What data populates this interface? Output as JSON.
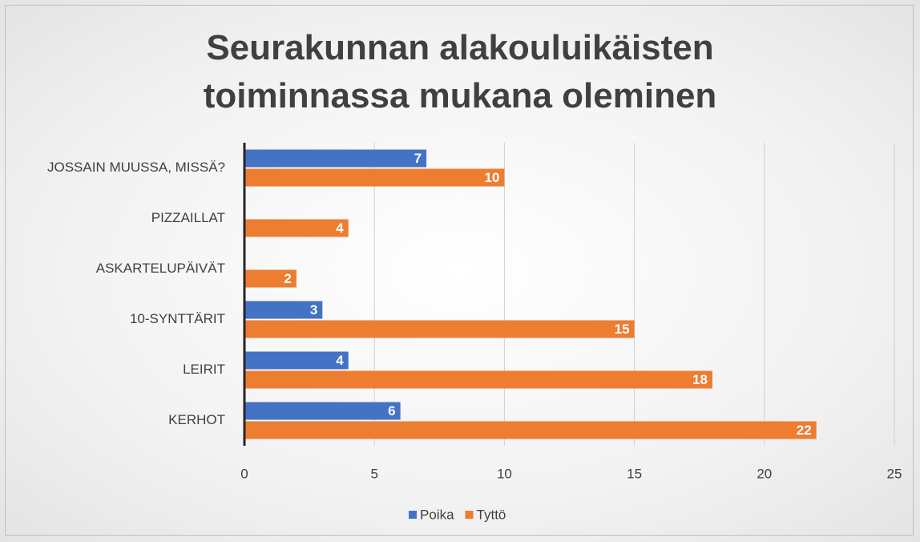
{
  "chart_data": {
    "type": "bar",
    "orientation": "horizontal",
    "title": "Seurakunnan alakouluikäisten toiminnassa mukana oleminen",
    "categories": [
      "JOSSAIN MUUSSA, MISSÄ?",
      "PIZZAILLAT",
      "ASKARTELUPÄIVÄT",
      "10-SYNTTÄRIT",
      "LEIRIT",
      "KERHOT"
    ],
    "series": [
      {
        "name": "Poika",
        "color": "#4472c4",
        "values": [
          7,
          null,
          null,
          3,
          4,
          6
        ]
      },
      {
        "name": "Tyttö",
        "color": "#ed7d31",
        "values": [
          10,
          4,
          2,
          15,
          18,
          22
        ]
      }
    ],
    "xlim": [
      0,
      25
    ],
    "xticks": [
      0,
      5,
      10,
      15,
      20,
      25
    ],
    "grid": true,
    "legend": "bottom"
  }
}
